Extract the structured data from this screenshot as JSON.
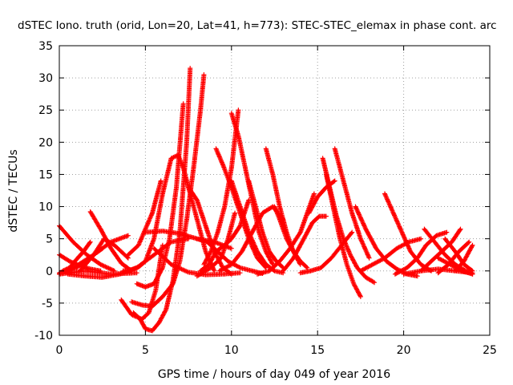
{
  "chart_data": {
    "type": "scatter",
    "title": "dSTEC Iono. truth (orid, Lon=20, Lat=41, h=773): STEC-STEC_elemax in phase cont. arc",
    "xlabel": "GPS time / hours of day 049 of year 2016",
    "ylabel": "dSTEC  / TECUs",
    "xlim": [
      0,
      25
    ],
    "ylim": [
      -10,
      35
    ],
    "xticks": [
      0,
      5,
      10,
      15,
      20,
      25
    ],
    "yticks": [
      -10,
      -5,
      0,
      5,
      10,
      15,
      20,
      25,
      30,
      35
    ],
    "grid": true,
    "legend": "none",
    "marker": "plus",
    "color": "#ff0000",
    "series": [
      {
        "x": [
          0.0,
          0.8,
          1.6,
          2.4,
          3.2
        ],
        "y": [
          7.0,
          4.5,
          2.5,
          1.0,
          0.0
        ]
      },
      {
        "x": [
          0.0,
          0.6,
          1.2,
          1.8,
          2.4
        ],
        "y": [
          2.5,
          1.5,
          0.8,
          0.3,
          0.0
        ]
      },
      {
        "x": [
          0.0,
          1.0,
          2.0,
          2.5
        ],
        "y": [
          -0.3,
          0.8,
          2.5,
          3.5
        ]
      },
      {
        "x": [
          0.0,
          1.5,
          3.0,
          4.5
        ],
        "y": [
          -0.5,
          0.0,
          -0.5,
          -0.3
        ]
      },
      {
        "x": [
          0.2,
          0.6,
          1.0,
          1.4,
          1.8
        ],
        "y": [
          0.0,
          0.5,
          1.8,
          3.0,
          4.5
        ]
      },
      {
        "x": [
          0.0,
          1.0,
          2.0,
          3.0,
          4.0
        ],
        "y": [
          -0.5,
          0.5,
          2.5,
          4.5,
          5.5
        ]
      },
      {
        "x": [
          1.8,
          2.4,
          3.0,
          3.6,
          4.2
        ],
        "y": [
          9.2,
          6.5,
          3.5,
          1.2,
          0.0
        ]
      },
      {
        "x": [
          1.2,
          2.0,
          2.6,
          3.2,
          4.0
        ],
        "y": [
          0.0,
          2.5,
          5.0,
          4.0,
          2.0
        ]
      },
      {
        "x": [
          0.5,
          1.5,
          2.5,
          3.5,
          4.5,
          5.5,
          6.5,
          7.5
        ],
        "y": [
          -0.5,
          -0.8,
          -1.0,
          -0.5,
          0.5,
          2.5,
          4.5,
          5.0
        ]
      },
      {
        "x": [
          3.6,
          4.2,
          4.8,
          5.2,
          5.6,
          6.0
        ],
        "y": [
          -4.5,
          -6.8,
          -7.5,
          -6.5,
          -3.0,
          4.0
        ]
      },
      {
        "x": [
          4.3,
          4.7,
          5.0,
          5.4,
          5.8,
          6.2,
          6.6,
          7.0,
          7.4,
          7.6
        ],
        "y": [
          -6.5,
          -7.5,
          -9.0,
          -9.3,
          -8.0,
          -6.0,
          -1.5,
          6.0,
          20.0,
          31.5
        ]
      },
      {
        "x": [
          4.2,
          4.8,
          5.4,
          6.0,
          6.6,
          7.0,
          7.4,
          7.8,
          8.2,
          8.4
        ],
        "y": [
          -4.8,
          -5.3,
          -5.5,
          -4.0,
          -2.0,
          1.5,
          8.0,
          16.0,
          25.0,
          30.5
        ]
      },
      {
        "x": [
          4.5,
          5.0,
          5.5,
          6.0,
          6.4,
          6.8,
          7.2
        ],
        "y": [
          -2.0,
          -2.5,
          -2.0,
          0.5,
          5.0,
          13.0,
          26.0
        ]
      },
      {
        "x": [
          3.7,
          4.2,
          4.6,
          5.0,
          5.5,
          6.0,
          6.5,
          6.9,
          7.2,
          7.5,
          8.0,
          8.5,
          9.0
        ],
        "y": [
          0.0,
          0.2,
          0.6,
          1.5,
          5.0,
          12.0,
          17.5,
          18.0,
          16.0,
          13.0,
          8.0,
          3.0,
          0.0
        ]
      },
      {
        "x": [
          4.0,
          4.6,
          5.0,
          5.4,
          5.7,
          5.9
        ],
        "y": [
          2.5,
          4.0,
          6.5,
          9.0,
          12.0,
          14.0
        ]
      },
      {
        "x": [
          5.0,
          6.0,
          7.0,
          8.0,
          9.0,
          10.0
        ],
        "y": [
          6.0,
          6.2,
          5.8,
          5.0,
          4.5,
          3.5
        ]
      },
      {
        "x": [
          5.5,
          6.5,
          7.5,
          8.5,
          9.5,
          10.5
        ],
        "y": [
          3.5,
          1.0,
          -0.2,
          -0.6,
          -0.5,
          -0.3
        ]
      },
      {
        "x": [
          7.5,
          8.0,
          8.5,
          9.0,
          9.5,
          10.0
        ],
        "y": [
          13.0,
          11.0,
          7.0,
          3.0,
          0.5,
          -0.5
        ]
      },
      {
        "x": [
          8.0,
          8.6,
          9.2,
          9.8,
          10.5,
          11.2,
          11.8
        ],
        "y": [
          5.0,
          4.5,
          3.0,
          1.5,
          0.5,
          0.0,
          -0.4
        ]
      },
      {
        "x": [
          8.2,
          8.7,
          9.1,
          9.6,
          10.0,
          10.5,
          11.0
        ],
        "y": [
          0.0,
          1.0,
          3.0,
          4.0,
          5.0,
          7.0,
          11.0
        ]
      },
      {
        "x": [
          8.0,
          8.8,
          9.4,
          9.8,
          10.2
        ],
        "y": [
          -0.8,
          0.5,
          2.0,
          5.0,
          9.0
        ]
      },
      {
        "x": [
          8.4,
          8.8,
          9.2,
          9.6,
          10.0,
          10.4
        ],
        "y": [
          1.0,
          3.0,
          6.0,
          10.0,
          16.0,
          25.0
        ]
      },
      {
        "x": [
          9.1,
          9.5,
          10.0,
          10.5,
          11.0,
          11.5,
          12.0
        ],
        "y": [
          19.0,
          16.5,
          13.0,
          9.0,
          5.0,
          2.0,
          0.5
        ]
      },
      {
        "x": [
          10.0,
          10.4,
          10.8,
          11.2,
          11.6,
          12.0,
          12.4
        ],
        "y": [
          24.5,
          21.0,
          16.0,
          11.0,
          6.0,
          3.0,
          1.0
        ]
      },
      {
        "x": [
          10.0,
          10.5,
          11.0,
          11.5,
          12.0,
          12.5,
          13.0
        ],
        "y": [
          14.0,
          10.0,
          6.0,
          3.0,
          1.0,
          0.0,
          -0.3
        ]
      },
      {
        "x": [
          9.3,
          10.0,
          10.6,
          11.2,
          11.8,
          12.4,
          13.0
        ],
        "y": [
          0.0,
          1.0,
          3.0,
          6.0,
          9.0,
          10.0,
          8.0
        ]
      },
      {
        "x": [
          11.0,
          11.4,
          11.8,
          12.2,
          12.6,
          13.0
        ],
        "y": [
          14.0,
          10.0,
          6.0,
          3.0,
          1.5,
          0.5
        ]
      },
      {
        "x": [
          12.0,
          12.4,
          12.8,
          13.2,
          13.6,
          14.0
        ],
        "y": [
          19.0,
          15.0,
          10.0,
          6.0,
          3.0,
          1.0
        ]
      },
      {
        "x": [
          12.5,
          12.8,
          13.2,
          13.6,
          14.0,
          14.4
        ],
        "y": [
          10.0,
          8.0,
          5.0,
          3.0,
          1.5,
          0.5
        ]
      },
      {
        "x": [
          11.5,
          12.2,
          12.8,
          13.4,
          14.0,
          14.4,
          14.8
        ],
        "y": [
          -0.5,
          0.0,
          1.5,
          3.5,
          6.0,
          9.0,
          12.0
        ]
      },
      {
        "x": [
          13.0,
          13.6,
          14.2,
          14.7,
          15.1,
          15.5
        ],
        "y": [
          0.0,
          2.0,
          5.0,
          7.5,
          8.5,
          8.5
        ]
      },
      {
        "x": [
          14.0,
          14.6,
          15.2,
          15.8,
          16.4,
          17.0
        ],
        "y": [
          -0.3,
          0.0,
          0.5,
          2.0,
          4.0,
          6.0
        ]
      },
      {
        "x": [
          15.3,
          15.7,
          16.1,
          16.5,
          16.9,
          17.3,
          17.8,
          18.3
        ],
        "y": [
          17.5,
          13.0,
          8.5,
          5.0,
          2.5,
          0.5,
          -1.0,
          -1.8
        ]
      },
      {
        "x": [
          15.5,
          15.9,
          16.3,
          16.7,
          17.1,
          17.5
        ],
        "y": [
          15.0,
          10.0,
          5.0,
          1.0,
          -2.0,
          -4.0
        ]
      },
      {
        "x": [
          16.0,
          16.5,
          17.0,
          17.5,
          18.0
        ],
        "y": [
          19.0,
          14.0,
          9.0,
          5.0,
          2.0
        ]
      },
      {
        "x": [
          14.5,
          15.0,
          15.5,
          16.0
        ],
        "y": [
          9.0,
          11.5,
          13.0,
          14.0
        ]
      },
      {
        "x": [
          17.2,
          17.8,
          18.4,
          19.0,
          19.6,
          20.2,
          20.8
        ],
        "y": [
          10.0,
          6.5,
          3.5,
          1.5,
          0.3,
          -0.5,
          -0.8
        ]
      },
      {
        "x": [
          18.9,
          19.4,
          19.9,
          20.4,
          21.0,
          21.6
        ],
        "y": [
          12.0,
          9.0,
          6.0,
          3.0,
          1.0,
          0.0
        ]
      },
      {
        "x": [
          17.5,
          18.2,
          18.9,
          19.6,
          20.3,
          21.0
        ],
        "y": [
          0.0,
          1.0,
          2.0,
          3.5,
          4.5,
          5.0
        ]
      },
      {
        "x": [
          19.5,
          20.2,
          20.8,
          21.3,
          21.9,
          22.5
        ],
        "y": [
          -0.5,
          0.5,
          2.0,
          4.0,
          5.5,
          6.0
        ]
      },
      {
        "x": [
          20.0,
          21.0,
          22.0,
          23.0,
          24.0
        ],
        "y": [
          -0.5,
          0.0,
          0.3,
          0.0,
          -0.3
        ]
      },
      {
        "x": [
          21.2,
          21.8,
          22.4,
          23.0,
          23.6,
          24.0
        ],
        "y": [
          6.5,
          4.5,
          2.5,
          1.0,
          0.0,
          -0.5
        ]
      },
      {
        "x": [
          21.0,
          21.6,
          22.2,
          22.8,
          23.3
        ],
        "y": [
          0.0,
          1.5,
          3.0,
          4.5,
          6.5
        ]
      },
      {
        "x": [
          22.0,
          22.6,
          23.2,
          23.8
        ],
        "y": [
          -0.3,
          1.0,
          3.0,
          4.5
        ]
      },
      {
        "x": [
          22.4,
          23.0,
          23.5,
          24.0
        ],
        "y": [
          5.0,
          3.0,
          1.0,
          0.0
        ]
      },
      {
        "x": [
          23.0,
          23.5,
          24.0
        ],
        "y": [
          0.0,
          1.5,
          4.0
        ]
      },
      {
        "x": [
          22.0,
          22.7,
          23.4,
          24.0
        ],
        "y": [
          2.0,
          1.0,
          0.0,
          -0.5
        ]
      }
    ]
  }
}
